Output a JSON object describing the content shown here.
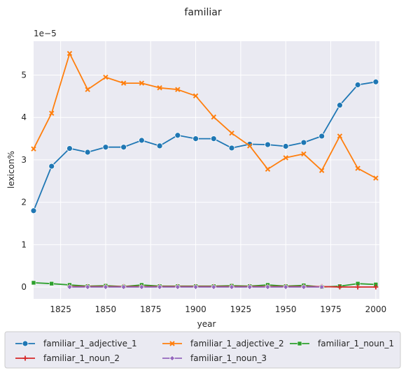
{
  "chart_data": {
    "type": "line",
    "title": "familiar",
    "xlabel": "year",
    "ylabel": "lexicon%",
    "y_multiplier_label": "1e−5",
    "xlim": [
      1810,
      2002
    ],
    "ylim": [
      -0.28,
      5.8
    ],
    "x_ticks": [
      1825,
      1850,
      1875,
      1900,
      1925,
      1950,
      1975,
      2000
    ],
    "y_ticks": [
      0,
      1,
      2,
      3,
      4,
      5
    ],
    "grid": true,
    "legend_position": "bottom",
    "series": [
      {
        "name": "familiar_1_adjective_1",
        "color": "#1f77b4",
        "marker": "circle",
        "x": [
          1810,
          1820,
          1830,
          1840,
          1850,
          1860,
          1870,
          1880,
          1890,
          1900,
          1910,
          1920,
          1930,
          1940,
          1950,
          1960,
          1970,
          1980,
          1990,
          2000
        ],
        "values": [
          1.8,
          2.85,
          3.27,
          3.18,
          3.3,
          3.3,
          3.46,
          3.33,
          3.58,
          3.5,
          3.5,
          3.28,
          3.37,
          3.36,
          3.32,
          3.41,
          3.56,
          4.29,
          4.77,
          4.84
        ]
      },
      {
        "name": "familiar_1_adjective_2",
        "color": "#ff7f0e",
        "marker": "x",
        "x": [
          1810,
          1820,
          1830,
          1840,
          1850,
          1860,
          1870,
          1880,
          1890,
          1900,
          1910,
          1920,
          1930,
          1940,
          1950,
          1960,
          1970,
          1980,
          1990,
          2000
        ],
        "values": [
          3.26,
          4.1,
          5.51,
          4.66,
          4.95,
          4.81,
          4.81,
          4.7,
          4.66,
          4.51,
          4.01,
          3.63,
          3.33,
          2.78,
          3.05,
          3.14,
          2.75,
          3.56,
          2.8,
          2.57
        ]
      },
      {
        "name": "familiar_1_noun_1",
        "color": "#2ca02c",
        "marker": "square",
        "x": [
          1810,
          1820,
          1830,
          1840,
          1850,
          1860,
          1870,
          1880,
          1890,
          1900,
          1910,
          1920,
          1930,
          1940,
          1950,
          1960,
          1970,
          1980,
          1990,
          2000
        ],
        "values": [
          0.1,
          0.08,
          0.05,
          0.02,
          0.03,
          0.01,
          0.05,
          0.02,
          0.02,
          0.02,
          0.02,
          0.03,
          0.02,
          0.05,
          0.02,
          0.04,
          0.0,
          0.02,
          0.08,
          0.06
        ]
      },
      {
        "name": "familiar_1_noun_2",
        "color": "#d62728",
        "marker": "plus",
        "x": [
          1830,
          1840,
          1850,
          1860,
          1870,
          1880,
          1890,
          1900,
          1910,
          1920,
          1930,
          1940,
          1950,
          1960,
          1970,
          1980,
          1990,
          2000
        ],
        "values": [
          0.01,
          0.01,
          0.01,
          0.01,
          0.01,
          0.01,
          0.01,
          0.01,
          0.01,
          0.01,
          0.01,
          0.01,
          0.01,
          0.01,
          0.01,
          0.0,
          0.0,
          0.0
        ]
      },
      {
        "name": "familiar_1_noun_3",
        "color": "#9467bd",
        "marker": "diamond",
        "x": [
          1830,
          1840,
          1850,
          1860,
          1870,
          1880,
          1890,
          1900,
          1910,
          1920,
          1930,
          1940,
          1950,
          1960,
          1970
        ],
        "values": [
          0.0,
          0.0,
          0.0,
          0.0,
          0.0,
          0.0,
          0.0,
          0.0,
          0.0,
          0.0,
          0.0,
          0.0,
          0.0,
          0.0,
          0.0
        ]
      }
    ]
  }
}
